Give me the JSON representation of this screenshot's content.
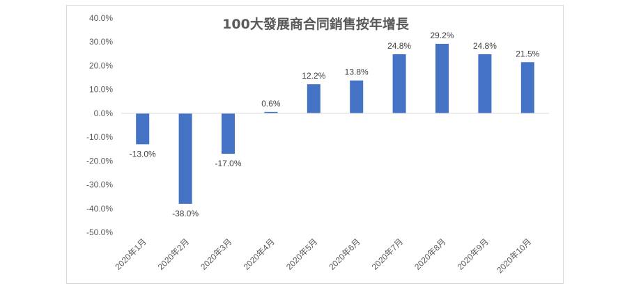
{
  "chart_data": {
    "type": "bar",
    "title": "100大發展商合同銷售按年增長",
    "xlabel": "",
    "ylabel": "",
    "categories": [
      "2020年1月",
      "2020年2月",
      "2020年3月",
      "2020年4月",
      "2020年5月",
      "2020年6月",
      "2020年7月",
      "2020年8月",
      "2020年9月",
      "2020年10月"
    ],
    "values": [
      -13.0,
      -38.0,
      -17.0,
      0.6,
      12.2,
      13.8,
      24.8,
      29.2,
      24.8,
      21.5
    ],
    "data_labels": [
      "-13.0%",
      "-38.0%",
      "-17.0%",
      "0.6%",
      "12.2%",
      "13.8%",
      "24.8%",
      "29.2%",
      "24.8%",
      "21.5%"
    ],
    "y_ticks": [
      "40.0%",
      "30.0%",
      "20.0%",
      "10.0%",
      "0.0%",
      "-10.0%",
      "-20.0%",
      "-30.0%",
      "-40.0%",
      "-50.0%"
    ],
    "ylim": [
      -50,
      40
    ],
    "grid": false,
    "legend": "none",
    "colors": {
      "bar": "#4472c4",
      "axis": "#d9d9d9"
    }
  }
}
